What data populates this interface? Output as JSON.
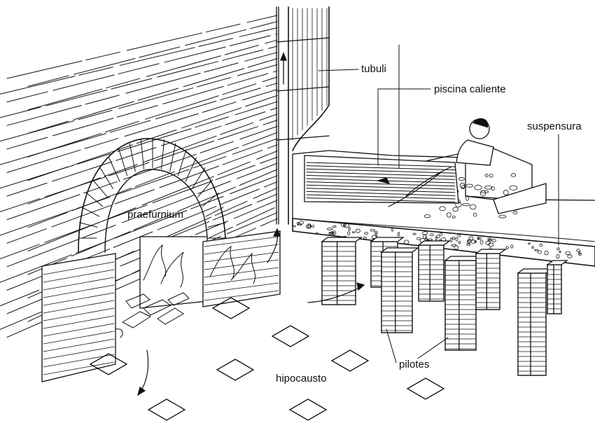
{
  "labels": {
    "tubuli": "tubuli",
    "piscina_caliente": "piscina caliente",
    "suspensura": "suspensura",
    "praefurnium": "praefurnium",
    "pilotes": "pilotes",
    "hipocausto": "hipocausto"
  },
  "colors": {
    "ink": "#111111",
    "paper": "#ffffff",
    "fill": "#d9d9d9"
  }
}
